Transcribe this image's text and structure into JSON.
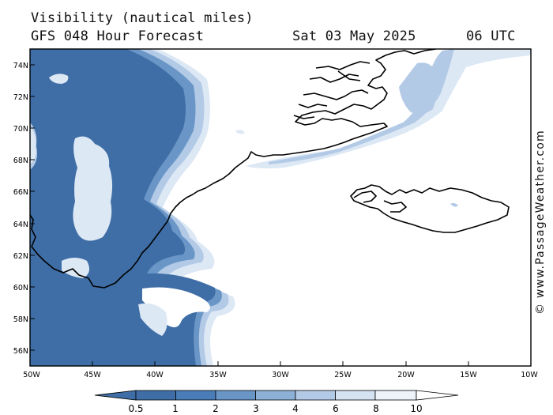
{
  "header": {
    "title": "Visibility (nautical miles)",
    "model": "GFS 048 Hour Forecast",
    "date": "Sat 03 May 2025",
    "time": "06 UTC"
  },
  "credit": "© www.PassageWeather.com",
  "map": {
    "lat_labels": [
      "74N",
      "72N",
      "70N",
      "68N",
      "66N",
      "64N",
      "62N",
      "60N",
      "58N",
      "56N"
    ],
    "lon_labels": [
      "50W",
      "45W",
      "40W",
      "35W",
      "30W",
      "25W",
      "20W",
      "15W",
      "10W"
    ]
  },
  "legend": {
    "labels": [
      "0.5",
      "1",
      "2",
      "3",
      "4",
      "6",
      "8",
      "10"
    ],
    "colors": [
      "#3f6ea6",
      "#4a7db8",
      "#6a96c7",
      "#8db0d6",
      "#b3cae6",
      "#d4e2f2",
      "#edf3fa"
    ]
  },
  "colors": {
    "dark": "#3f6ea6",
    "mid": "#6a96c7",
    "light": "#b3cae6",
    "pale": "#dde8f5",
    "coast": "#000000"
  }
}
